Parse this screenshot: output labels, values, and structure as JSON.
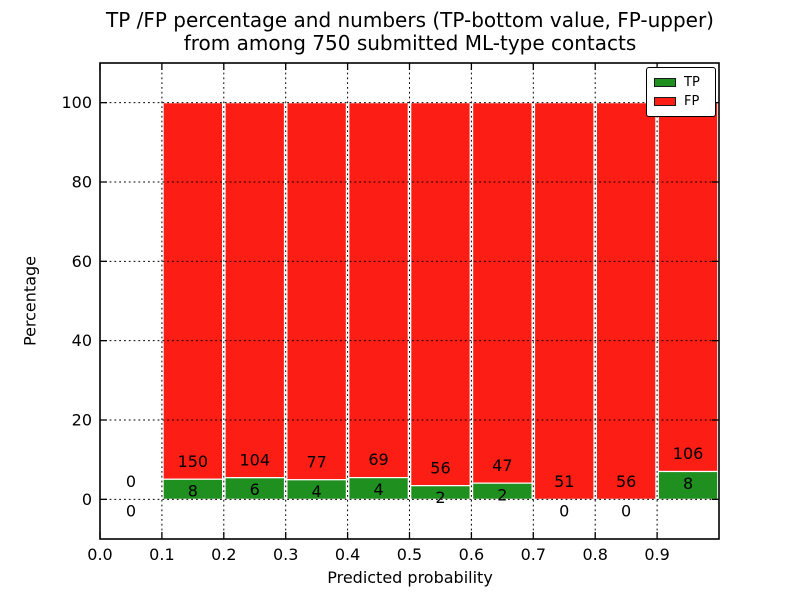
{
  "figure": {
    "background": "#ffffff"
  },
  "chart_data": {
    "type": "bar",
    "stacked": true,
    "title_lines": [
      "TP /FP percentage and numbers (TP-bottom value, FP-upper)",
      "from among 750 submitted ML-type contacts"
    ],
    "xlabel": "Predicted probability",
    "ylabel": "Percentage",
    "xlim": [
      0.0,
      1.0
    ],
    "ylim": [
      -10,
      110
    ],
    "bin_width": 0.1,
    "grid": "dotted-black-both-axes",
    "xticks": [
      {
        "v": 0.0,
        "label": "0.0"
      },
      {
        "v": 0.1,
        "label": "0.1"
      },
      {
        "v": 0.2,
        "label": "0.2"
      },
      {
        "v": 0.3,
        "label": "0.3"
      },
      {
        "v": 0.4,
        "label": "0.4"
      },
      {
        "v": 0.5,
        "label": "0.5"
      },
      {
        "v": 0.6,
        "label": "0.6"
      },
      {
        "v": 0.7,
        "label": "0.7"
      },
      {
        "v": 0.8,
        "label": "0.8"
      },
      {
        "v": 0.9,
        "label": "0.9"
      }
    ],
    "yticks": [
      {
        "v": 0,
        "label": "0"
      },
      {
        "v": 20,
        "label": "20"
      },
      {
        "v": 40,
        "label": "40"
      },
      {
        "v": 60,
        "label": "60"
      },
      {
        "v": 80,
        "label": "80"
      },
      {
        "v": 100,
        "label": "100"
      }
    ],
    "categories": [
      "0.0-0.1",
      "0.1-0.2",
      "0.2-0.3",
      "0.3-0.4",
      "0.4-0.5",
      "0.5-0.6",
      "0.6-0.7",
      "0.7-0.8",
      "0.8-0.9",
      "0.9-1.0"
    ],
    "series": [
      {
        "name": "TP",
        "color": "#1f8f1f",
        "values": [
          0,
          8,
          6,
          4,
          4,
          2,
          2,
          0,
          0,
          8
        ]
      },
      {
        "name": "FP",
        "color": "#fc1d14",
        "values": [
          0,
          150,
          104,
          77,
          69,
          56,
          47,
          51,
          56,
          106
        ]
      }
    ],
    "legend": {
      "position": "upper right",
      "entries": [
        {
          "label": "TP",
          "color": "#1f8f1f"
        },
        {
          "label": "FP",
          "color": "#fc1d14"
        }
      ]
    },
    "bar_edge_color": "#ffffff",
    "note_semantics": "bars are percentage-stacked to 100%; number above green segment = FP count, number inside/below green segment = TP count"
  }
}
